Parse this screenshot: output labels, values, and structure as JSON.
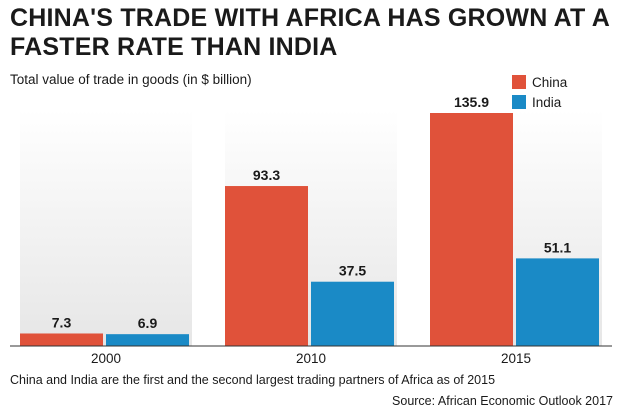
{
  "chart_data": {
    "type": "bar",
    "title": "CHINA'S TRADE WITH AFRICA HAS GROWN AT A FASTER RATE THAN INDIA",
    "subtitle": "Total value of trade in goods (in $ billion)",
    "categories": [
      "2000",
      "2010",
      "2015"
    ],
    "series": [
      {
        "name": "China",
        "color": "#e0523a",
        "values": [
          7.3,
          93.3,
          135.9
        ],
        "labels": [
          "7.3",
          "93.3",
          "135.9"
        ]
      },
      {
        "name": "India",
        "color": "#1a8ac6",
        "values": [
          6.9,
          37.5,
          51.1
        ],
        "labels": [
          "6.9",
          "37.5",
          "51.1"
        ]
      }
    ],
    "ylim": [
      0,
      140
    ],
    "grid": false,
    "legend_position": "top-right"
  },
  "footer": {
    "note": "China and India are the first and the second largest trading partners of Africa as of 2015",
    "source": "Source: African Economic Outlook 2017"
  }
}
